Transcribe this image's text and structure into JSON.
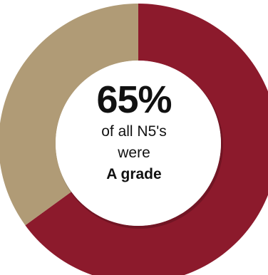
{
  "chart_data": {
    "type": "pie",
    "donut": true,
    "series": [
      {
        "values": [
          65,
          35
        ]
      }
    ],
    "colors": [
      "#8c1a2c",
      "#b09b76"
    ],
    "start_angle_deg": 0,
    "direction": "clockwise"
  },
  "center": {
    "value": "65%",
    "line1": "of all N5's",
    "line2": "were",
    "line3": "A grade"
  }
}
